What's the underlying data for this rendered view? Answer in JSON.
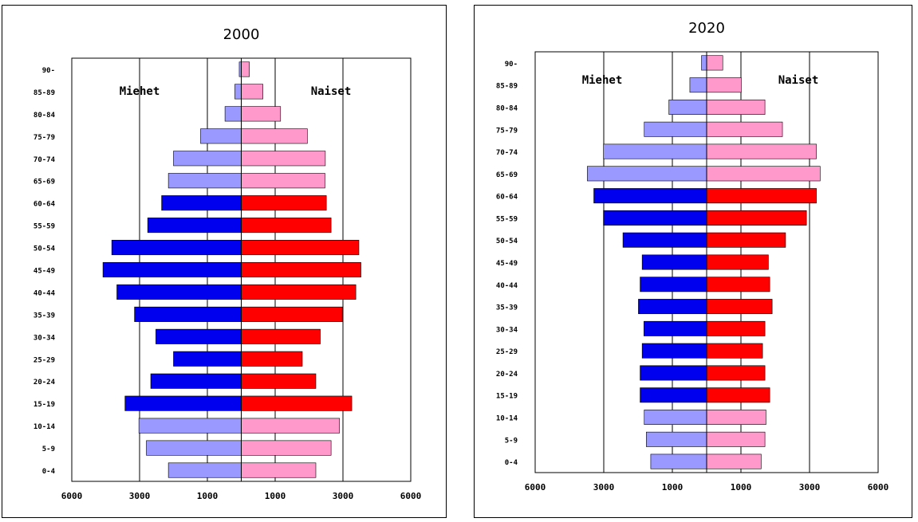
{
  "colors": {
    "male_dark": "#0000ee",
    "male_light": "#9999ff",
    "female_dark": "#ff0000",
    "female_light": "#ff99cc",
    "background": "#ffffff",
    "axis": "#000000"
  },
  "chart_data": [
    {
      "type": "bar",
      "orientation": "horizontal",
      "style": "population-pyramid",
      "title": "2000",
      "categories": [
        "0-4",
        "5-9",
        "10-14",
        "15-19",
        "20-24",
        "25-29",
        "30-34",
        "35-39",
        "40-44",
        "45-49",
        "50-54",
        "55-59",
        "60-64",
        "65-69",
        "70-74",
        "75-79",
        "80-84",
        "85-89",
        "90-"
      ],
      "x_tick_labels": [
        "6000",
        "3000",
        "1000",
        "1000",
        "3000",
        "6000"
      ],
      "xlim": [
        -5000,
        5000
      ],
      "grid": true,
      "series": [
        {
          "name": "Miehet",
          "side": "left",
          "values": [
            2150,
            2800,
            3020,
            3430,
            2670,
            2000,
            2520,
            3150,
            3670,
            4080,
            3820,
            2760,
            2350,
            2150,
            2000,
            1200,
            480,
            190,
            60
          ]
        },
        {
          "name": "Naiset",
          "side": "right",
          "values": [
            2200,
            2650,
            2900,
            3260,
            2200,
            1800,
            2330,
            2980,
            3380,
            3530,
            3470,
            2650,
            2510,
            2470,
            2480,
            1950,
            1160,
            640,
            240
          ]
        }
      ],
      "highlight_age_groups": [
        "15-19",
        "20-24",
        "25-29",
        "30-34",
        "35-39",
        "40-44",
        "45-49",
        "50-54",
        "55-59",
        "60-64"
      ]
    },
    {
      "type": "bar",
      "orientation": "horizontal",
      "style": "population-pyramid",
      "title": "2020",
      "categories": [
        "0-4",
        "5-9",
        "10-14",
        "15-19",
        "20-24",
        "25-29",
        "30-34",
        "35-39",
        "40-44",
        "45-49",
        "50-54",
        "55-59",
        "60-64",
        "65-69",
        "70-74",
        "75-79",
        "80-84",
        "85-89",
        "90-"
      ],
      "x_tick_labels": [
        "6000",
        "3000",
        "1000",
        "1000",
        "3000",
        "6000"
      ],
      "xlim": [
        -5000,
        5000
      ],
      "grid": true,
      "series": [
        {
          "name": "Miehet",
          "side": "left",
          "values": [
            1630,
            1760,
            1820,
            1940,
            1940,
            1880,
            1830,
            1990,
            1940,
            1880,
            2440,
            3010,
            3290,
            3480,
            3010,
            1820,
            1100,
            490,
            150
          ]
        },
        {
          "name": "Naiset",
          "side": "right",
          "values": [
            1590,
            1700,
            1730,
            1840,
            1700,
            1630,
            1700,
            1910,
            1840,
            1800,
            2300,
            2910,
            3200,
            3310,
            3200,
            2210,
            1700,
            1010,
            470
          ]
        }
      ],
      "highlight_age_groups": [
        "15-19",
        "20-24",
        "25-29",
        "30-34",
        "35-39",
        "40-44",
        "45-49",
        "50-54",
        "55-59",
        "60-64"
      ]
    }
  ]
}
